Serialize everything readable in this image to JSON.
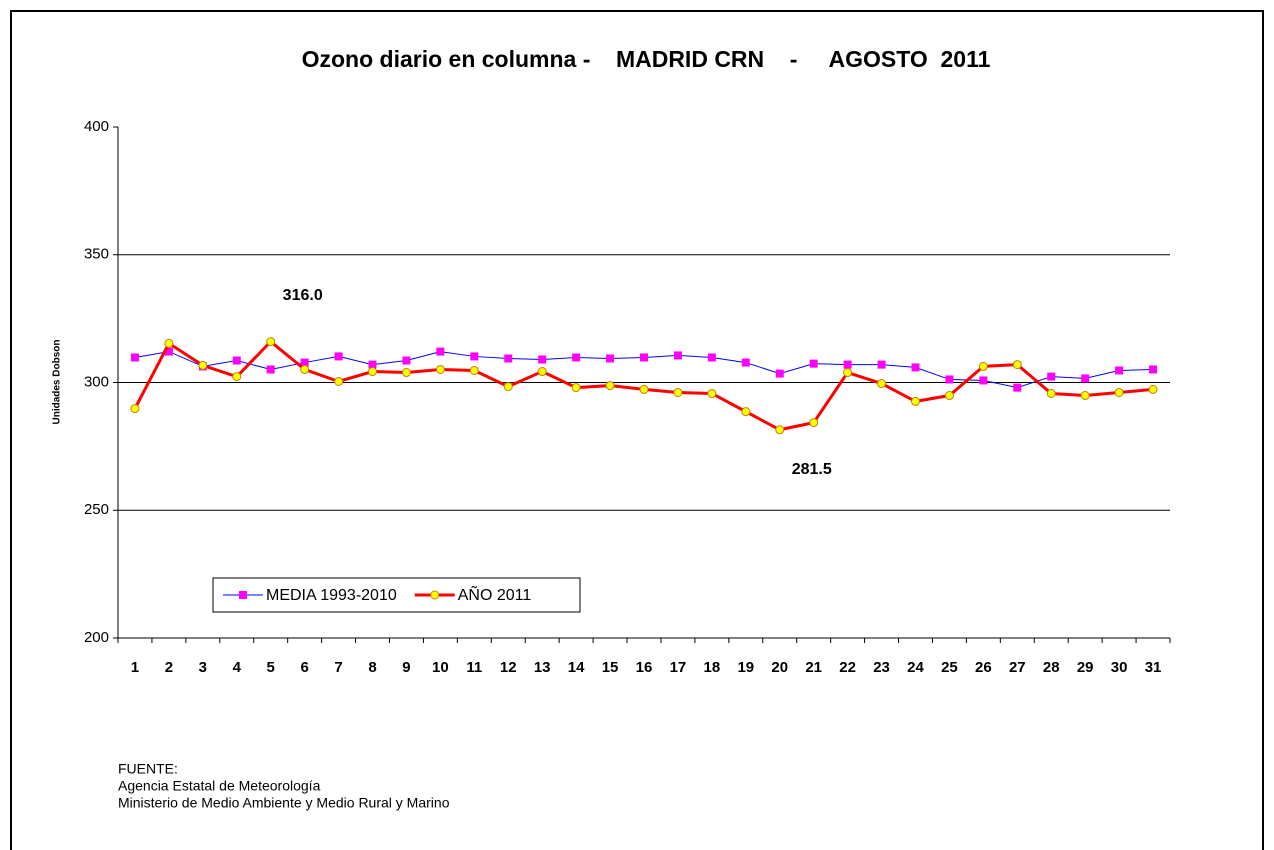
{
  "chart_data": {
    "type": "line",
    "title": "Ozono diario en columna -    MADRID CRN    -     AGOSTO  2011",
    "y_label": "Unidades Dobson",
    "categories": [
      "1",
      "2",
      "3",
      "4",
      "5",
      "6",
      "7",
      "8",
      "9",
      "10",
      "11",
      "12",
      "13",
      "14",
      "15",
      "16",
      "17",
      "18",
      "19",
      "20",
      "21",
      "22",
      "23",
      "24",
      "25",
      "26",
      "27",
      "28",
      "29",
      "30",
      "31"
    ],
    "series": [
      {
        "name": "MEDIA 1993-2010",
        "color": "#0000ff",
        "marker_color": "#ff00ff",
        "marker": "square",
        "values": [
          309.8,
          312.1,
          306.3,
          308.6,
          305.1,
          307.8,
          310.2,
          307,
          308.6,
          312.1,
          310.2,
          309.4,
          309,
          309.8,
          309.4,
          309.8,
          310.6,
          309.8,
          307.8,
          303.5,
          307.4,
          307,
          307,
          305.9,
          301.2,
          300.8,
          298,
          302.3,
          301.6,
          304.7,
          305.1
        ]
      },
      {
        "name": "AÑO 2011",
        "color": "#ff0000",
        "marker_color": "#ffff00",
        "marker": "circle",
        "values": [
          289.8,
          315.3,
          306.7,
          302.3,
          316.0,
          305.1,
          300.4,
          304.3,
          303.9,
          305.1,
          304.7,
          298.4,
          304.3,
          298,
          298.8,
          297.3,
          296.1,
          295.7,
          288.6,
          281.5,
          284.3,
          303.9,
          299.6,
          292.6,
          294.9,
          306.3,
          307,
          295.7,
          294.9,
          296.1,
          297.3
        ],
        "value_labels": [
          null,
          null,
          null,
          null,
          "316.0",
          null,
          null,
          null,
          null,
          null,
          null,
          null,
          null,
          null,
          null,
          null,
          null,
          null,
          null,
          "281.5",
          null,
          null,
          null,
          null,
          null,
          null,
          null,
          null,
          null,
          null,
          null
        ]
      }
    ],
    "ylim": [
      200,
      400
    ],
    "yticks": [
      200,
      250,
      300,
      350,
      400
    ],
    "grid": true,
    "legend": "lower left",
    "source": [
      "FUENTE:",
      "Agencia Estatal de Meteorología",
      "Ministerio de Medio Ambiente y Medio Rural y Marino"
    ]
  }
}
